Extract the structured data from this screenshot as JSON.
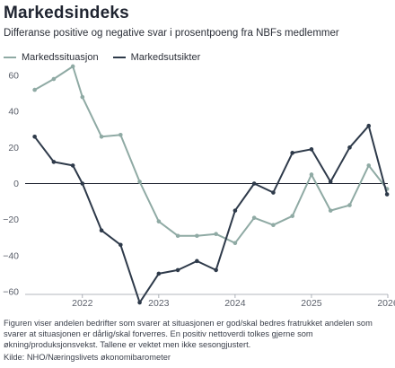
{
  "title": "Markedsindeks",
  "subtitle": "Differanse positive og negative svar i prosentpoeng fra NBFs medlemmer",
  "note": "Figuren viser andelen bedrifter som svarer at situasjonen er god/skal bedres fratrukket andelen som svarer at situasjonen er dårlig/skal forverres. En positiv nettoverdi tolkes gjerne som økning/produksjonsvekst. Tallene er vektet men ikke sesongjustert.",
  "source": "Kilde: NHO/Næringslivets økonomibarometer",
  "chart_data": {
    "type": "line",
    "title": "Markedsindeks",
    "subtitle": "Differanse positive og negative svar i prosentpoeng fra NBFs medlemmer",
    "xlabel": "",
    "ylabel": "",
    "xlim": [
      2021.25,
      2026.0
    ],
    "ylim": [
      -60,
      60
    ],
    "yticks": [
      60,
      40,
      20,
      0,
      -20,
      -40,
      -60
    ],
    "xticks": [
      2022,
      2023,
      2024,
      2025,
      2026
    ],
    "grid": false,
    "legend": "top-left",
    "x": [
      2021.375,
      2021.625,
      2021.875,
      2022.0,
      2022.25,
      2022.5,
      2022.75,
      2023.0,
      2023.25,
      2023.5,
      2023.75,
      2024.0,
      2024.25,
      2024.5,
      2024.75,
      2025.0,
      2025.25,
      2025.5,
      2025.75,
      2025.99
    ],
    "series": [
      {
        "name": "Markedssituasjon",
        "color": "#8faaa4",
        "values": [
          52,
          58,
          65,
          48,
          26,
          27,
          1,
          -21,
          -29,
          -29,
          -28,
          -33,
          -19,
          -23,
          -18,
          5,
          -15,
          -12,
          10,
          -3
        ]
      },
      {
        "name": "Markedsutsikter",
        "color": "#2e3a4a",
        "values": [
          26,
          12,
          10,
          0,
          -26,
          -34,
          -66,
          -50,
          -48,
          -43,
          -48,
          -15,
          0,
          -5,
          17,
          19,
          1,
          20,
          32,
          -6
        ]
      }
    ]
  }
}
